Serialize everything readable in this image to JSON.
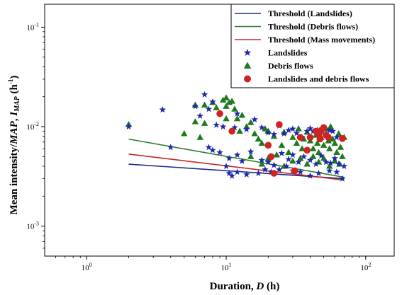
{
  "chart_data": {
    "type": "scatter",
    "x_scale": "log",
    "y_scale": "log",
    "xlim": [
      0.5,
      160
    ],
    "ylim": [
      0.0005,
      0.17
    ],
    "xlabel_prefix": "Duration, ",
    "xlabel_var": "D",
    "xlabel_suffix": " (h)",
    "ylabel_prefix": "Mean intensity/",
    "ylabel_map": "MAP",
    "ylabel_sep": ", ",
    "ylabel_var": "I",
    "ylabel_sub": "MAP",
    "ylabel_unit": " (h",
    "ylabel_unit_sup": "-1",
    "ylabel_unit_close": ")",
    "x_ticks": [
      {
        "value": 1,
        "base": "10",
        "exp": "0"
      },
      {
        "value": 10,
        "base": "10",
        "exp": "1"
      },
      {
        "value": 100,
        "base": "10",
        "exp": "2"
      }
    ],
    "y_ticks": [
      {
        "value": 0.1,
        "base": "10",
        "exp": "-1"
      },
      {
        "value": 0.01,
        "base": "10",
        "exp": "-2"
      },
      {
        "value": 0.001,
        "base": "10",
        "exp": "-3"
      }
    ],
    "legend_position": "top-right",
    "legend": [
      {
        "label": "Threshold (Landslides)",
        "kind": "line",
        "color": "#1f2a8a"
      },
      {
        "label": "Threshold (Debris flows)",
        "kind": "line",
        "color": "#2e7d32"
      },
      {
        "label": "Threshold (Mass movements)",
        "kind": "line",
        "color": "#c62828"
      },
      {
        "label": "Landslides",
        "kind": "star",
        "color": "#1f2aa8"
      },
      {
        "label": "Debris flows",
        "kind": "triangle",
        "color": "#1f7a1f"
      },
      {
        "label": "Landslides and debris flows",
        "kind": "circle",
        "color": "#d32020"
      }
    ],
    "thresholds": [
      {
        "name": "Threshold (Landslides)",
        "color": "#1f2a8a",
        "x": [
          2,
          70
        ],
        "y": [
          0.0042,
          0.003
        ]
      },
      {
        "name": "Threshold (Debris flows)",
        "color": "#2e7d32",
        "x": [
          2,
          70
        ],
        "y": [
          0.0075,
          0.0031
        ]
      },
      {
        "name": "Threshold (Mass movements)",
        "color": "#c62828",
        "x": [
          2,
          70
        ],
        "y": [
          0.0053,
          0.0029
        ]
      }
    ],
    "series": [
      {
        "name": "Landslides",
        "marker": "star",
        "color": "#1f2aa8",
        "points": [
          [
            2,
            0.01
          ],
          [
            3.5,
            0.0148
          ],
          [
            4,
            0.0062
          ],
          [
            6,
            0.016
          ],
          [
            6.5,
            0.0128
          ],
          [
            7,
            0.021
          ],
          [
            7.5,
            0.015
          ],
          [
            7.5,
            0.0062
          ],
          [
            8,
            0.0178
          ],
          [
            8.5,
            0.0104
          ],
          [
            9.5,
            0.01
          ],
          [
            11.5,
            0.0098
          ],
          [
            12,
            0.0135
          ],
          [
            14,
            0.0094
          ],
          [
            16,
            0.0118
          ],
          [
            18,
            0.0098
          ],
          [
            20,
            0.0087
          ],
          [
            22,
            0.0084
          ],
          [
            24,
            0.0102
          ],
          [
            26,
            0.0085
          ],
          [
            28,
            0.0092
          ],
          [
            30,
            0.0095
          ],
          [
            32,
            0.0086
          ],
          [
            35,
            0.0078
          ],
          [
            38,
            0.009
          ],
          [
            40,
            0.0096
          ],
          [
            42,
            0.009
          ],
          [
            45,
            0.0092
          ],
          [
            48,
            0.0088
          ],
          [
            52,
            0.0085
          ],
          [
            55,
            0.0092
          ],
          [
            58,
            0.009
          ],
          [
            62,
            0.0078
          ],
          [
            8,
            0.0058
          ],
          [
            9,
            0.0055
          ],
          [
            10.5,
            0.0048
          ],
          [
            12,
            0.0052
          ],
          [
            13,
            0.0045
          ],
          [
            15,
            0.0056
          ],
          [
            18,
            0.0046
          ],
          [
            20,
            0.0044
          ],
          [
            22,
            0.0041
          ],
          [
            25,
            0.0054
          ],
          [
            28,
            0.0047
          ],
          [
            30,
            0.0052
          ],
          [
            33,
            0.0044
          ],
          [
            36,
            0.005
          ],
          [
            40,
            0.0046
          ],
          [
            44,
            0.0042
          ],
          [
            48,
            0.0051
          ],
          [
            52,
            0.0044
          ],
          [
            56,
            0.0043
          ],
          [
            60,
            0.0048
          ],
          [
            64,
            0.0042
          ],
          [
            70,
            0.004
          ],
          [
            10,
            0.004
          ],
          [
            10.5,
            0.0034
          ],
          [
            11,
            0.0032
          ],
          [
            12,
            0.0035
          ],
          [
            14,
            0.0033
          ],
          [
            17,
            0.0034
          ],
          [
            19,
            0.0037
          ],
          [
            21,
            0.0035
          ],
          [
            24,
            0.0037
          ],
          [
            27,
            0.004
          ],
          [
            30,
            0.0036
          ],
          [
            34,
            0.0035
          ],
          [
            40,
            0.0032
          ],
          [
            46,
            0.0034
          ],
          [
            55,
            0.0036
          ],
          [
            62,
            0.0035
          ],
          [
            68,
            0.003
          ]
        ]
      },
      {
        "name": "Debris flows",
        "marker": "triangle",
        "color": "#1f7a1f",
        "points": [
          [
            2,
            0.0105
          ],
          [
            5,
            0.0085
          ],
          [
            6,
            0.0165
          ],
          [
            6,
            0.0112
          ],
          [
            6.5,
            0.0078
          ],
          [
            7,
            0.0165
          ],
          [
            7,
            0.0108
          ],
          [
            8,
            0.0175
          ],
          [
            8.5,
            0.0155
          ],
          [
            9.5,
            0.0185
          ],
          [
            10,
            0.0195
          ],
          [
            10.5,
            0.0175
          ],
          [
            10,
            0.016
          ],
          [
            10,
            0.012
          ],
          [
            11,
            0.018
          ],
          [
            11.5,
            0.015
          ],
          [
            12,
            0.012
          ],
          [
            12.5,
            0.009
          ],
          [
            13,
            0.013
          ],
          [
            14,
            0.01
          ],
          [
            15,
            0.011
          ],
          [
            16,
            0.0085
          ],
          [
            17,
            0.0075
          ],
          [
            18,
            0.0068
          ],
          [
            19,
            0.0095
          ],
          [
            20,
            0.009
          ],
          [
            22,
            0.008
          ],
          [
            24,
            0.0105
          ],
          [
            25,
            0.0065
          ],
          [
            26,
            0.0088
          ],
          [
            28,
            0.0055
          ],
          [
            30,
            0.0078
          ],
          [
            32,
            0.0068
          ],
          [
            33,
            0.0095
          ],
          [
            35,
            0.006
          ],
          [
            36,
            0.0075
          ],
          [
            38,
            0.0088
          ],
          [
            40,
            0.0072
          ],
          [
            42,
            0.006
          ],
          [
            44,
            0.0082
          ],
          [
            45,
            0.0068
          ],
          [
            46,
            0.0055
          ],
          [
            48,
            0.0078
          ],
          [
            50,
            0.0065
          ],
          [
            52,
            0.0095
          ],
          [
            54,
            0.0072
          ],
          [
            55,
            0.006
          ],
          [
            56,
            0.01
          ],
          [
            58,
            0.0075
          ],
          [
            60,
            0.0068
          ],
          [
            62,
            0.0055
          ],
          [
            64,
            0.0085
          ],
          [
            66,
            0.0062
          ],
          [
            68,
            0.005
          ],
          [
            70,
            0.0078
          ],
          [
            15,
            0.005
          ],
          [
            18,
            0.0042
          ],
          [
            20,
            0.0048
          ],
          [
            23,
            0.0052
          ],
          [
            26,
            0.004
          ],
          [
            30,
            0.0045
          ],
          [
            34,
            0.0048
          ],
          [
            38,
            0.0042
          ],
          [
            42,
            0.005
          ],
          [
            46,
            0.0044
          ],
          [
            50,
            0.0048
          ],
          [
            55,
            0.004
          ],
          [
            60,
            0.0045
          ],
          [
            65,
            0.0042
          ]
        ]
      },
      {
        "name": "Landslides and debris flows",
        "marker": "circle",
        "color": "#d32020",
        "points": [
          [
            9,
            0.0135
          ],
          [
            11,
            0.009
          ],
          [
            20,
            0.0065
          ],
          [
            24,
            0.0105
          ],
          [
            21,
            0.005
          ],
          [
            22,
            0.0034
          ],
          [
            34,
            0.0078
          ],
          [
            38,
            0.0058
          ],
          [
            40,
            0.0078
          ],
          [
            44,
            0.009
          ],
          [
            46,
            0.0085
          ],
          [
            47,
            0.0075
          ],
          [
            48,
            0.0092
          ],
          [
            50,
            0.0098
          ],
          [
            52,
            0.0082
          ],
          [
            54,
            0.0078
          ],
          [
            68,
            0.0076
          ],
          [
            31,
            0.0036
          ]
        ]
      }
    ]
  }
}
